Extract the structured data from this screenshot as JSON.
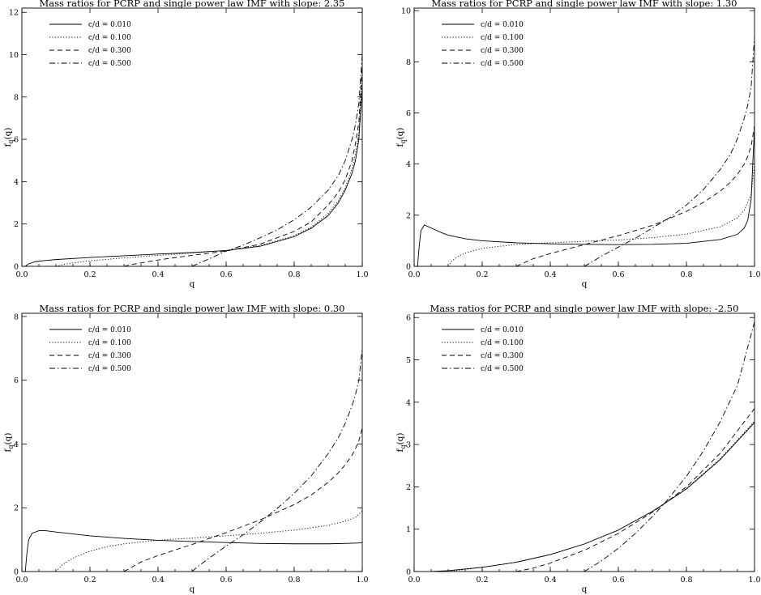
{
  "chart_data": [
    {
      "type": "line",
      "title": "Mass ratios for PCRP and single power law IMF with slope:  2.35",
      "xlabel": "q",
      "ylabel": "f_q(q)",
      "xlim": [
        0,
        1.0
      ],
      "ylim": [
        0,
        12.2
      ],
      "xticks": [
        "0.0",
        "0.2",
        "0.4",
        "0.6",
        "0.8",
        "1.0"
      ],
      "yticks": [
        "0",
        "2",
        "4",
        "6",
        "8",
        "10",
        "12"
      ],
      "legend_position": "top-left",
      "series": [
        {
          "name": "c/d = 0.010",
          "style": "solid",
          "x": [
            0.01,
            0.02,
            0.04,
            0.07,
            0.1,
            0.15,
            0.2,
            0.3,
            0.4,
            0.5,
            0.6,
            0.7,
            0.8,
            0.85,
            0.9,
            0.93,
            0.95,
            0.97,
            0.98,
            0.99,
            1.0
          ],
          "y": [
            0.0,
            0.12,
            0.22,
            0.28,
            0.32,
            0.37,
            0.42,
            0.5,
            0.58,
            0.65,
            0.75,
            0.95,
            1.4,
            1.8,
            2.4,
            3.0,
            3.6,
            4.4,
            5.0,
            6.0,
            8.5
          ]
        },
        {
          "name": "c/d = 0.100",
          "style": "dotted",
          "x": [
            0.1,
            0.12,
            0.15,
            0.2,
            0.3,
            0.4,
            0.5,
            0.6,
            0.7,
            0.8,
            0.85,
            0.9,
            0.93,
            0.95,
            0.97,
            0.98,
            0.99,
            1.0
          ],
          "y": [
            0.0,
            0.08,
            0.16,
            0.26,
            0.4,
            0.52,
            0.63,
            0.75,
            0.98,
            1.45,
            1.85,
            2.5,
            3.1,
            3.7,
            4.6,
            5.3,
            6.3,
            9.0
          ]
        },
        {
          "name": "c/d = 0.300",
          "style": "dashed",
          "x": [
            0.3,
            0.32,
            0.35,
            0.4,
            0.5,
            0.6,
            0.7,
            0.8,
            0.85,
            0.9,
            0.93,
            0.95,
            0.97,
            0.98,
            0.99,
            1.0
          ],
          "y": [
            0.0,
            0.08,
            0.16,
            0.3,
            0.52,
            0.72,
            1.05,
            1.65,
            2.1,
            2.9,
            3.5,
            4.1,
            5.0,
            5.8,
            6.8,
            9.5
          ]
        },
        {
          "name": "c/d = 0.500",
          "style": "dashdot",
          "x": [
            0.5,
            0.52,
            0.55,
            0.6,
            0.65,
            0.7,
            0.75,
            0.8,
            0.85,
            0.9,
            0.93,
            0.95,
            0.97,
            0.98,
            0.99,
            1.0
          ],
          "y": [
            0.0,
            0.15,
            0.35,
            0.72,
            1.0,
            1.35,
            1.72,
            2.2,
            2.8,
            3.6,
            4.3,
            5.0,
            6.0,
            6.7,
            7.7,
            10.0
          ]
        }
      ]
    },
    {
      "type": "line",
      "title": "Mass ratios for PCRP and single power law IMF with slope:  1.30",
      "xlabel": "q",
      "ylabel": "f_q(q)",
      "xlim": [
        0,
        1.0
      ],
      "ylim": [
        0,
        10.1
      ],
      "xticks": [
        "0.0",
        "0.2",
        "0.4",
        "0.6",
        "0.8",
        "1.0"
      ],
      "yticks": [
        "0",
        "2",
        "4",
        "6",
        "8",
        "10"
      ],
      "legend_position": "top-left",
      "series": [
        {
          "name": "c/d = 0.010",
          "style": "solid",
          "x": [
            0.01,
            0.015,
            0.02,
            0.03,
            0.05,
            0.08,
            0.1,
            0.15,
            0.2,
            0.3,
            0.4,
            0.5,
            0.6,
            0.7,
            0.8,
            0.9,
            0.95,
            0.97,
            0.98,
            0.99,
            1.0
          ],
          "y": [
            0.0,
            0.8,
            1.4,
            1.62,
            1.5,
            1.32,
            1.22,
            1.08,
            1.0,
            0.92,
            0.88,
            0.86,
            0.85,
            0.86,
            0.9,
            1.05,
            1.25,
            1.5,
            1.8,
            2.6,
            5.5
          ]
        },
        {
          "name": "c/d = 0.100",
          "style": "dotted",
          "x": [
            0.1,
            0.11,
            0.13,
            0.15,
            0.2,
            0.3,
            0.4,
            0.5,
            0.6,
            0.7,
            0.8,
            0.9,
            0.95,
            0.97,
            0.99,
            1.0
          ],
          "y": [
            0.0,
            0.2,
            0.4,
            0.52,
            0.7,
            0.86,
            0.92,
            0.98,
            1.03,
            1.12,
            1.26,
            1.55,
            1.9,
            2.2,
            2.8,
            4.0
          ]
        },
        {
          "name": "c/d = 0.300",
          "style": "dashed",
          "x": [
            0.3,
            0.32,
            0.35,
            0.4,
            0.5,
            0.6,
            0.7,
            0.8,
            0.85,
            0.9,
            0.93,
            0.95,
            0.97,
            0.98,
            0.99,
            1.0
          ],
          "y": [
            0.0,
            0.12,
            0.3,
            0.5,
            0.85,
            1.2,
            1.6,
            2.15,
            2.5,
            2.95,
            3.3,
            3.6,
            4.0,
            4.3,
            4.7,
            5.5
          ]
        },
        {
          "name": "c/d = 0.500",
          "style": "dashdot",
          "x": [
            0.5,
            0.52,
            0.55,
            0.6,
            0.65,
            0.7,
            0.75,
            0.8,
            0.85,
            0.9,
            0.93,
            0.95,
            0.97,
            0.98,
            0.99,
            1.0
          ],
          "y": [
            0.0,
            0.15,
            0.4,
            0.75,
            1.1,
            1.5,
            1.9,
            2.4,
            3.0,
            3.8,
            4.4,
            5.0,
            5.8,
            6.3,
            7.0,
            9.0
          ]
        }
      ]
    },
    {
      "type": "line",
      "title": "Mass ratios for PCRP and single power law IMF with slope:  0.30",
      "xlabel": "q",
      "ylabel": "f_q(q)",
      "xlim": [
        0,
        1.0
      ],
      "ylim": [
        0,
        8.1
      ],
      "xticks": [
        "0.0",
        "0.2",
        "0.4",
        "0.6",
        "0.8",
        "1.0"
      ],
      "yticks": [
        "0",
        "2",
        "4",
        "6",
        "8"
      ],
      "legend_position": "top-left",
      "series": [
        {
          "name": "c/d = 0.010",
          "style": "solid",
          "x": [
            0.01,
            0.015,
            0.02,
            0.03,
            0.05,
            0.07,
            0.1,
            0.15,
            0.2,
            0.3,
            0.4,
            0.5,
            0.6,
            0.7,
            0.8,
            0.9,
            0.95,
            1.0
          ],
          "y": [
            0.0,
            0.6,
            1.0,
            1.2,
            1.28,
            1.28,
            1.24,
            1.18,
            1.12,
            1.04,
            0.98,
            0.94,
            0.91,
            0.88,
            0.87,
            0.87,
            0.88,
            0.9
          ]
        },
        {
          "name": "c/d = 0.100",
          "style": "dotted",
          "x": [
            0.1,
            0.12,
            0.15,
            0.2,
            0.25,
            0.3,
            0.4,
            0.5,
            0.6,
            0.7,
            0.8,
            0.9,
            0.95,
            0.98,
            1.0
          ],
          "y": [
            0.0,
            0.22,
            0.42,
            0.64,
            0.78,
            0.87,
            0.98,
            1.05,
            1.12,
            1.2,
            1.3,
            1.45,
            1.58,
            1.7,
            1.9
          ]
        },
        {
          "name": "c/d = 0.300",
          "style": "dashed",
          "x": [
            0.3,
            0.32,
            0.35,
            0.4,
            0.5,
            0.6,
            0.7,
            0.8,
            0.85,
            0.9,
            0.93,
            0.95,
            0.97,
            0.98,
            0.99,
            1.0
          ],
          "y": [
            0.0,
            0.12,
            0.3,
            0.5,
            0.85,
            1.22,
            1.62,
            2.1,
            2.4,
            2.8,
            3.1,
            3.35,
            3.65,
            3.85,
            4.1,
            4.5
          ]
        },
        {
          "name": "c/d = 0.500",
          "style": "dashdot",
          "x": [
            0.5,
            0.52,
            0.55,
            0.6,
            0.65,
            0.7,
            0.75,
            0.8,
            0.85,
            0.9,
            0.93,
            0.95,
            0.97,
            0.98,
            0.99,
            1.0
          ],
          "y": [
            0.0,
            0.18,
            0.42,
            0.8,
            1.15,
            1.55,
            1.98,
            2.45,
            3.0,
            3.7,
            4.2,
            4.65,
            5.2,
            5.55,
            6.0,
            7.0
          ]
        }
      ]
    },
    {
      "type": "line",
      "title": "Mass ratios for PCRP and single power law IMF with slope:  -2.50",
      "xlabel": "q",
      "ylabel": "f_q(q)",
      "xlim": [
        0,
        1.0
      ],
      "ylim": [
        0,
        6.1
      ],
      "xticks": [
        "0.0",
        "0.2",
        "0.4",
        "0.6",
        "0.8",
        "1.0"
      ],
      "yticks": [
        "0",
        "1",
        "2",
        "3",
        "4",
        "5",
        "6"
      ],
      "legend_position": "top-left",
      "series": [
        {
          "name": "c/d = 0.010",
          "style": "solid",
          "x": [
            0.05,
            0.1,
            0.2,
            0.3,
            0.4,
            0.5,
            0.6,
            0.7,
            0.74,
            0.8,
            0.9,
            1.0
          ],
          "y": [
            0.0,
            0.02,
            0.1,
            0.22,
            0.4,
            0.65,
            0.98,
            1.42,
            1.63,
            1.95,
            2.65,
            3.52
          ]
        },
        {
          "name": "c/d = 0.100",
          "style": "dotted",
          "x": [
            0.1,
            0.15,
            0.2,
            0.3,
            0.4,
            0.5,
            0.6,
            0.7,
            0.74,
            0.8,
            0.9,
            1.0
          ],
          "y": [
            0.0,
            0.05,
            0.1,
            0.22,
            0.4,
            0.65,
            0.98,
            1.42,
            1.63,
            1.96,
            2.67,
            3.55
          ]
        },
        {
          "name": "c/d = 0.300",
          "style": "dashed",
          "x": [
            0.3,
            0.35,
            0.4,
            0.5,
            0.6,
            0.7,
            0.74,
            0.8,
            0.9,
            1.0
          ],
          "y": [
            0.0,
            0.08,
            0.2,
            0.5,
            0.9,
            1.4,
            1.63,
            2.0,
            2.8,
            3.85
          ]
        },
        {
          "name": "c/d = 0.500",
          "style": "dashdot",
          "x": [
            0.5,
            0.55,
            0.6,
            0.65,
            0.7,
            0.74,
            0.8,
            0.85,
            0.9,
            0.95,
            1.0
          ],
          "y": [
            0.0,
            0.25,
            0.55,
            0.9,
            1.3,
            1.65,
            2.25,
            2.85,
            3.55,
            4.4,
            5.9
          ]
        }
      ]
    }
  ]
}
